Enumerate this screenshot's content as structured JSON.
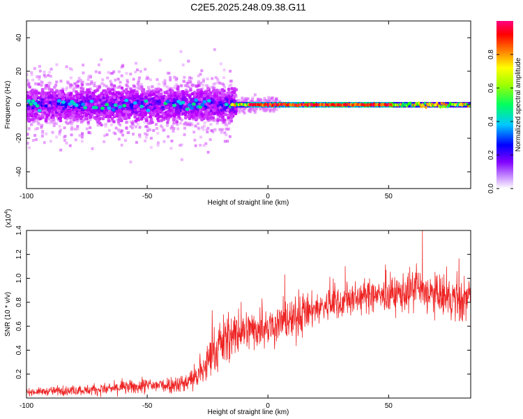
{
  "title": "C2E5.2025.248.09.38.G11",
  "chart_data": [
    {
      "type": "heatmap",
      "name": "spectrogram",
      "xlabel": "Height of straight line (km)",
      "ylabel": "Frequency (Hz)",
      "xlim": [
        -100,
        84
      ],
      "ylim": [
        -50,
        50
      ],
      "xticks": [
        -100,
        -50,
        0,
        50
      ],
      "yticks": [
        -40,
        -20,
        0,
        20,
        40
      ],
      "grid": false,
      "colorbar": {
        "label": "Normalized spectral amplitude",
        "range": [
          0,
          1
        ],
        "ticks": [
          0.0,
          0.2,
          0.4,
          0.6,
          0.8
        ],
        "tick_labels": [
          "0.0",
          "0.2",
          "0.4",
          "0.6",
          "0.8"
        ],
        "colormap": [
          "#ffffff",
          "#c000ff",
          "#0000ff",
          "#00c8ff",
          "#00ff00",
          "#ffff00",
          "#ff8000",
          "#ff0000",
          "#ff0080"
        ]
      },
      "regions": [
        {
          "x_range": [
            -100,
            -15
          ],
          "freq_center": 0,
          "freq_spread_hz": 6,
          "max_amplitude": 0.3,
          "note": "diffuse broadband noise"
        },
        {
          "x_range": [
            -15,
            84
          ],
          "freq_center": 0,
          "freq_spread_hz": 1,
          "max_amplitude": 1.0,
          "note": "narrow line near 0 Hz"
        }
      ]
    },
    {
      "type": "line",
      "name": "snr",
      "xlabel": "Height of straight line (km)",
      "ylabel": "SNR (10 * v/v)",
      "y_multiplier": "(x10",
      "y_multiplier_exp": "4",
      "y_multiplier_close": ")",
      "xlim": [
        -100,
        84
      ],
      "ylim": [
        0,
        1.4
      ],
      "xticks": [
        -100,
        -50,
        0,
        50
      ],
      "yticks": [
        0.2,
        0.4,
        0.6,
        0.8,
        1.0,
        1.2,
        1.4
      ],
      "ytick_labels": [
        "0.2",
        "0.4",
        "0.6",
        "0.8",
        "1.0",
        "1.2",
        "1.4"
      ],
      "grid": false,
      "color": "#ee2222",
      "envelope": {
        "x": [
          -100,
          -70,
          -50,
          -35,
          -28,
          -20,
          -12,
          0,
          10,
          20,
          30,
          40,
          50,
          60,
          70,
          80,
          84
        ],
        "mean": [
          0.05,
          0.07,
          0.1,
          0.12,
          0.2,
          0.45,
          0.55,
          0.6,
          0.65,
          0.75,
          0.8,
          0.85,
          0.85,
          0.9,
          0.85,
          0.8,
          0.85
        ],
        "spread": [
          0.03,
          0.05,
          0.07,
          0.08,
          0.15,
          0.25,
          0.2,
          0.18,
          0.2,
          0.15,
          0.15,
          0.15,
          0.15,
          0.2,
          0.2,
          0.2,
          0.2
        ]
      },
      "notable_peaks": [
        {
          "x": 7,
          "y": 1.03
        },
        {
          "x": 32,
          "y": 1.1
        },
        {
          "x": 64,
          "y": 1.4
        }
      ]
    }
  ]
}
